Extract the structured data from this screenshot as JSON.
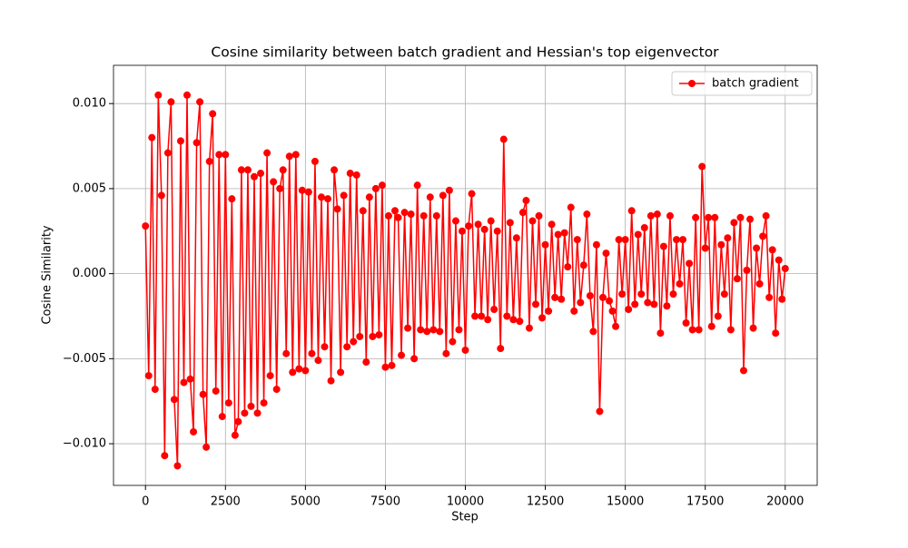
{
  "chart_data": {
    "type": "line",
    "title": "Cosine similarity between batch gradient and Hessian's top eigenvector",
    "xlabel": "Step",
    "ylabel": "Cosine Similarity",
    "x": [
      0,
      100,
      200,
      300,
      400,
      500,
      600,
      700,
      800,
      900,
      1000,
      1100,
      1200,
      1300,
      1400,
      1500,
      1600,
      1700,
      1800,
      1900,
      2000,
      2100,
      2200,
      2300,
      2400,
      2500,
      2600,
      2700,
      2800,
      2900,
      3000,
      3100,
      3200,
      3300,
      3400,
      3500,
      3600,
      3700,
      3800,
      3900,
      4000,
      4100,
      4200,
      4300,
      4400,
      4500,
      4600,
      4700,
      4800,
      4900,
      5000,
      5100,
      5200,
      5300,
      5400,
      5500,
      5600,
      5700,
      5800,
      5900,
      6000,
      6100,
      6200,
      6300,
      6400,
      6500,
      6600,
      6700,
      6800,
      6900,
      7000,
      7100,
      7200,
      7300,
      7400,
      7500,
      7600,
      7700,
      7800,
      7900,
      8000,
      8100,
      8200,
      8300,
      8400,
      8500,
      8600,
      8700,
      8800,
      8900,
      9000,
      9100,
      9200,
      9300,
      9400,
      9500,
      9600,
      9700,
      9800,
      9900,
      10000,
      10100,
      10200,
      10300,
      10400,
      10500,
      10600,
      10700,
      10800,
      10900,
      11000,
      11100,
      11200,
      11300,
      11400,
      11500,
      11600,
      11700,
      11800,
      11900,
      12000,
      12100,
      12200,
      12300,
      12400,
      12500,
      12600,
      12700,
      12800,
      12900,
      13000,
      13100,
      13200,
      13300,
      13400,
      13500,
      13600,
      13700,
      13800,
      13900,
      14000,
      14100,
      14200,
      14300,
      14400,
      14500,
      14600,
      14700,
      14800,
      14900,
      15000,
      15100,
      15200,
      15300,
      15400,
      15500,
      15600,
      15700,
      15800,
      15900,
      16000,
      16100,
      16200,
      16300,
      16400,
      16500,
      16600,
      16700,
      16800,
      16900,
      17000,
      17100,
      17200,
      17300,
      17400,
      17500,
      17600,
      17700,
      17800,
      17900,
      18000,
      18100,
      18200,
      18300,
      18400,
      18500,
      18600,
      18700,
      18800,
      18900,
      19000,
      19100,
      19200,
      19300,
      19400,
      19500,
      19600,
      19700,
      19800,
      19900,
      20000
    ],
    "series": [
      {
        "name": "batch gradient",
        "color": "#ff0000",
        "values": [
          0.0028,
          -0.006,
          0.008,
          -0.0068,
          0.0105,
          0.0046,
          -0.0107,
          0.0071,
          0.0101,
          -0.0074,
          -0.0113,
          0.0078,
          -0.0064,
          0.0105,
          -0.0062,
          -0.0093,
          0.0077,
          0.0101,
          -0.0071,
          -0.0102,
          0.0066,
          0.0094,
          -0.0069,
          0.007,
          -0.0084,
          0.007,
          -0.0076,
          0.0044,
          -0.0095,
          -0.0087,
          0.0061,
          -0.0082,
          0.0061,
          -0.0078,
          0.0057,
          -0.0082,
          0.0059,
          -0.0076,
          0.0071,
          -0.006,
          0.0054,
          -0.0068,
          0.005,
          0.0061,
          -0.0047,
          0.0069,
          -0.0058,
          0.007,
          -0.0056,
          0.0049,
          -0.0057,
          0.0048,
          -0.0047,
          0.0066,
          -0.0051,
          0.0045,
          -0.0043,
          0.0044,
          -0.0063,
          0.0061,
          0.0038,
          -0.0058,
          0.0046,
          -0.0043,
          0.0059,
          -0.004,
          0.0058,
          -0.0037,
          0.0037,
          -0.0052,
          0.0045,
          -0.0037,
          0.005,
          -0.0036,
          0.0052,
          -0.0055,
          0.0034,
          -0.0054,
          0.0037,
          0.0033,
          -0.0048,
          0.0036,
          -0.0032,
          0.0035,
          -0.005,
          0.0052,
          -0.0033,
          0.0034,
          -0.0034,
          0.0045,
          -0.0033,
          0.0034,
          -0.0034,
          0.0046,
          -0.0047,
          0.0049,
          -0.004,
          0.0031,
          -0.0033,
          0.0025,
          -0.0045,
          0.0028,
          0.0047,
          -0.0025,
          0.0029,
          -0.0025,
          0.0026,
          -0.0027,
          0.0031,
          -0.0021,
          0.0025,
          -0.0044,
          0.0079,
          -0.0025,
          0.003,
          -0.0027,
          0.0021,
          -0.0028,
          0.0036,
          0.0043,
          -0.0032,
          0.0031,
          -0.0018,
          0.0034,
          -0.0026,
          0.0017,
          -0.0022,
          0.0029,
          -0.0014,
          0.0023,
          -0.0015,
          0.0024,
          0.0004,
          0.0039,
          -0.0022,
          0.002,
          -0.0017,
          0.0005,
          0.0035,
          -0.0013,
          -0.0034,
          0.0017,
          -0.0081,
          -0.0014,
          0.0012,
          -0.0016,
          -0.0022,
          -0.0031,
          0.002,
          -0.0012,
          0.002,
          -0.0021,
          0.0037,
          -0.0018,
          0.0023,
          -0.0012,
          0.0027,
          -0.0017,
          0.0034,
          -0.0018,
          0.0035,
          -0.0035,
          0.0016,
          -0.0019,
          0.0034,
          -0.0012,
          0.002,
          -0.0006,
          0.002,
          -0.0029,
          0.0006,
          -0.0033,
          0.0033,
          -0.0033,
          0.0063,
          0.0015,
          0.0033,
          -0.0031,
          0.0033,
          -0.0025,
          0.0017,
          -0.0012,
          0.0021,
          -0.0033,
          0.003,
          -0.0003,
          0.0033,
          -0.0057,
          0.0002,
          0.0032,
          -0.0032,
          0.0015,
          -0.0006,
          0.0022,
          0.0034,
          -0.0014,
          0.0014,
          -0.0035,
          0.0008,
          -0.0015,
          0.0003
        ]
      }
    ],
    "xlim": [
      -1000,
      21000
    ],
    "ylim": [
      -0.01245,
      0.01225
    ],
    "xticks": [
      0,
      2500,
      5000,
      7500,
      10000,
      12500,
      15000,
      17500,
      20000
    ],
    "yticks": [
      {
        "value": -0.01,
        "label": "−0.010"
      },
      {
        "value": -0.005,
        "label": "−0.005"
      },
      {
        "value": 0,
        "label": "0.000"
      },
      {
        "value": 0.005,
        "label": "0.005"
      },
      {
        "value": 0.01,
        "label": "0.010"
      }
    ],
    "grid": true,
    "legend": "upper right"
  }
}
